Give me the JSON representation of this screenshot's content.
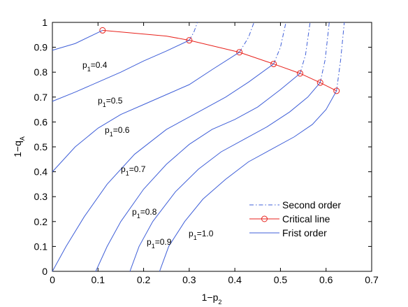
{
  "chart_data": {
    "type": "line",
    "xlabel": {
      "base": "1−p",
      "sub": "2"
    },
    "ylabel": {
      "base": "1−q",
      "sub": "A"
    },
    "xlim": [
      0,
      0.7
    ],
    "xticks": [
      0,
      0.1,
      0.2,
      0.3,
      0.4,
      0.5,
      0.6,
      0.7
    ],
    "ylim": [
      0,
      1
    ],
    "yticks": [
      0,
      0.1,
      0.2,
      0.3,
      0.4,
      0.5,
      0.6,
      0.7,
      0.8,
      0.9,
      1
    ],
    "legend": "lower right",
    "series": [
      {
        "name": "Second order",
        "color": "#3f5fd8",
        "dash": "dashdot",
        "lines": [
          {
            "x": [
              0.3,
              0.31,
              0.318
            ],
            "values": [
              0.928,
              0.96,
              1.0
            ]
          },
          {
            "x": [
              0.41,
              0.43,
              0.442
            ],
            "values": [
              0.88,
              0.94,
              1.0
            ]
          },
          {
            "x": [
              0.485,
              0.5,
              0.512
            ],
            "values": [
              0.833,
              0.9,
              1.0
            ]
          },
          {
            "x": [
              0.543,
              0.555,
              0.565
            ],
            "values": [
              0.795,
              0.87,
              1.0
            ]
          },
          {
            "x": [
              0.587,
              0.598,
              0.607
            ],
            "values": [
              0.758,
              0.85,
              1.0
            ]
          },
          {
            "x": [
              0.623,
              0.632,
              0.64
            ],
            "values": [
              0.725,
              0.85,
              1.0
            ]
          }
        ]
      },
      {
        "name": "Critical line",
        "color": "#e8221c",
        "marker": "circle",
        "lines": [
          {
            "x": [
              0.11,
              0.25,
              0.3,
              0.41,
              0.485,
              0.543,
              0.587,
              0.623
            ],
            "values": [
              0.968,
              0.945,
              0.928,
              0.88,
              0.833,
              0.795,
              0.758,
              0.725
            ]
          }
        ]
      },
      {
        "name": "Frist order",
        "color": "#3f5fd8",
        "lines": [
          {
            "x": [
              0,
              0.05,
              0.11
            ],
            "values": [
              0.888,
              0.915,
              0.968
            ]
          },
          {
            "x": [
              0,
              0.05,
              0.1,
              0.15,
              0.2,
              0.25,
              0.3
            ],
            "values": [
              0.683,
              0.72,
              0.76,
              0.8,
              0.845,
              0.885,
              0.928
            ]
          },
          {
            "x": [
              0,
              0.05,
              0.1,
              0.15,
              0.2,
              0.25,
              0.3,
              0.35,
              0.41
            ],
            "values": [
              0.4,
              0.5,
              0.575,
              0.63,
              0.67,
              0.71,
              0.75,
              0.81,
              0.88
            ]
          },
          {
            "x": [
              0,
              0.03,
              0.07,
              0.12,
              0.18,
              0.25,
              0.32,
              0.38,
              0.43,
              0.485
            ],
            "values": [
              0,
              0.1,
              0.22,
              0.35,
              0.47,
              0.57,
              0.64,
              0.7,
              0.76,
              0.833
            ]
          },
          {
            "x": [
              0.095,
              0.12,
              0.15,
              0.2,
              0.25,
              0.3,
              0.35,
              0.4,
              0.45,
              0.5,
              0.543
            ],
            "values": [
              0,
              0.1,
              0.2,
              0.33,
              0.43,
              0.51,
              0.57,
              0.61,
              0.66,
              0.73,
              0.795
            ]
          },
          {
            "x": [
              0.17,
              0.19,
              0.22,
              0.27,
              0.32,
              0.37,
              0.42,
              0.47,
              0.52,
              0.56,
              0.587
            ],
            "values": [
              0,
              0.1,
              0.2,
              0.32,
              0.41,
              0.48,
              0.53,
              0.58,
              0.64,
              0.7,
              0.758
            ]
          },
          {
            "x": [
              0.235,
              0.255,
              0.29,
              0.33,
              0.38,
              0.43,
              0.48,
              0.53,
              0.57,
              0.6,
              0.623
            ],
            "values": [
              0,
              0.1,
              0.2,
              0.29,
              0.37,
              0.44,
              0.49,
              0.54,
              0.59,
              0.65,
              0.725
            ]
          }
        ]
      }
    ],
    "annotations": [
      {
        "base": "p",
        "sub": "1",
        "text": "=0.4"
      },
      {
        "base": "p",
        "sub": "1",
        "text": "=0.5"
      },
      {
        "base": "p",
        "sub": "1",
        "text": "=0.6"
      },
      {
        "base": "p",
        "sub": "1",
        "text": "=0.7"
      },
      {
        "base": "p",
        "sub": "1",
        "text": "=0.8"
      },
      {
        "base": "p",
        "sub": "1",
        "text": "=0.9"
      },
      {
        "base": "p",
        "sub": "1",
        "text": "=1.0"
      }
    ]
  }
}
